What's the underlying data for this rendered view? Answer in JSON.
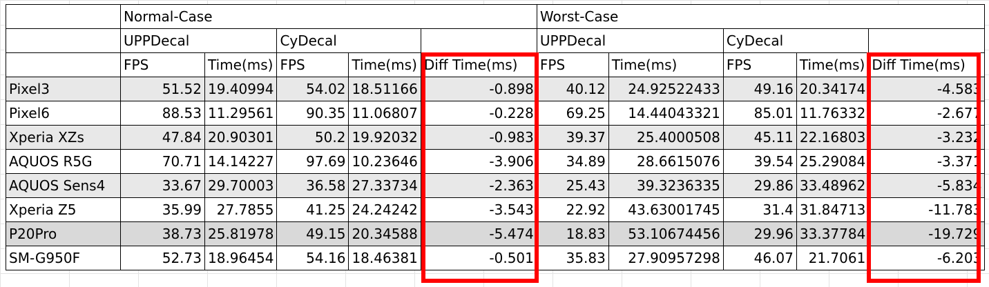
{
  "header": {
    "normal_case": "Normal-Case",
    "worst_case": "Worst-Case",
    "upp_decal": "UPPDecal",
    "cy_decal": "CyDecal",
    "fps": "FPS",
    "time_ms": "Time(ms)",
    "diff_time_ms": "Diff Time(ms)"
  },
  "rows": [
    {
      "device": "Pixel3",
      "n_upp_fps": "51.52",
      "n_upp_time": "19.40994",
      "n_cy_fps": "54.02",
      "n_cy_time": "18.51166",
      "n_diff": "-0.898",
      "w_upp_fps": "40.12",
      "w_upp_time": "24.92522433",
      "w_cy_fps": "49.16",
      "w_cy_time": "20.34174",
      "w_diff": "-4.583"
    },
    {
      "device": "Pixel6",
      "n_upp_fps": "88.53",
      "n_upp_time": "11.29561",
      "n_cy_fps": "90.35",
      "n_cy_time": "11.06807",
      "n_diff": "-0.228",
      "w_upp_fps": "69.25",
      "w_upp_time": "14.44043321",
      "w_cy_fps": "85.01",
      "w_cy_time": "11.76332",
      "w_diff": "-2.677"
    },
    {
      "device": "Xperia XZs",
      "n_upp_fps": "47.84",
      "n_upp_time": "20.90301",
      "n_cy_fps": "50.2",
      "n_cy_time": "19.92032",
      "n_diff": "-0.983",
      "w_upp_fps": "39.37",
      "w_upp_time": "25.4000508",
      "w_cy_fps": "45.11",
      "w_cy_time": "22.16803",
      "w_diff": "-3.232"
    },
    {
      "device": "AQUOS R5G",
      "n_upp_fps": "70.71",
      "n_upp_time": "14.14227",
      "n_cy_fps": "97.69",
      "n_cy_time": "10.23646",
      "n_diff": "-3.906",
      "w_upp_fps": "34.89",
      "w_upp_time": "28.6615076",
      "w_cy_fps": "39.54",
      "w_cy_time": "25.29084",
      "w_diff": "-3.371"
    },
    {
      "device": "AQUOS Sens4",
      "n_upp_fps": "33.67",
      "n_upp_time": "29.70003",
      "n_cy_fps": "36.58",
      "n_cy_time": "27.33734",
      "n_diff": "-2.363",
      "w_upp_fps": "25.43",
      "w_upp_time": "39.3236335",
      "w_cy_fps": "29.86",
      "w_cy_time": "33.48962",
      "w_diff": "-5.834"
    },
    {
      "device": "Xperia Z5",
      "n_upp_fps": "35.99",
      "n_upp_time": "27.7855",
      "n_cy_fps": "41.25",
      "n_cy_time": "24.24242",
      "n_diff": "-3.543",
      "w_upp_fps": "22.92",
      "w_upp_time": "43.63001745",
      "w_cy_fps": "31.4",
      "w_cy_time": "31.84713",
      "w_diff": "-11.783"
    },
    {
      "device": "P20Pro",
      "n_upp_fps": "38.73",
      "n_upp_time": "25.81978",
      "n_cy_fps": "49.15",
      "n_cy_time": "20.34588",
      "n_diff": "-5.474",
      "w_upp_fps": "18.83",
      "w_upp_time": "53.10674456",
      "w_cy_fps": "29.96",
      "w_cy_time": "33.37784",
      "w_diff": "-19.729"
    },
    {
      "device": "SM-G950F",
      "n_upp_fps": "52.73",
      "n_upp_time": "18.96454",
      "n_cy_fps": "54.16",
      "n_cy_time": "18.46381",
      "n_diff": "-0.501",
      "w_upp_fps": "35.83",
      "w_upp_time": "27.90957298",
      "w_cy_fps": "46.07",
      "w_cy_time": "21.7061",
      "w_diff": "-6.203"
    }
  ],
  "colors": {
    "highlight_box": "#ff0000",
    "max_diff_text": "#ff0000",
    "row_shade": "#e8e8e8"
  }
}
